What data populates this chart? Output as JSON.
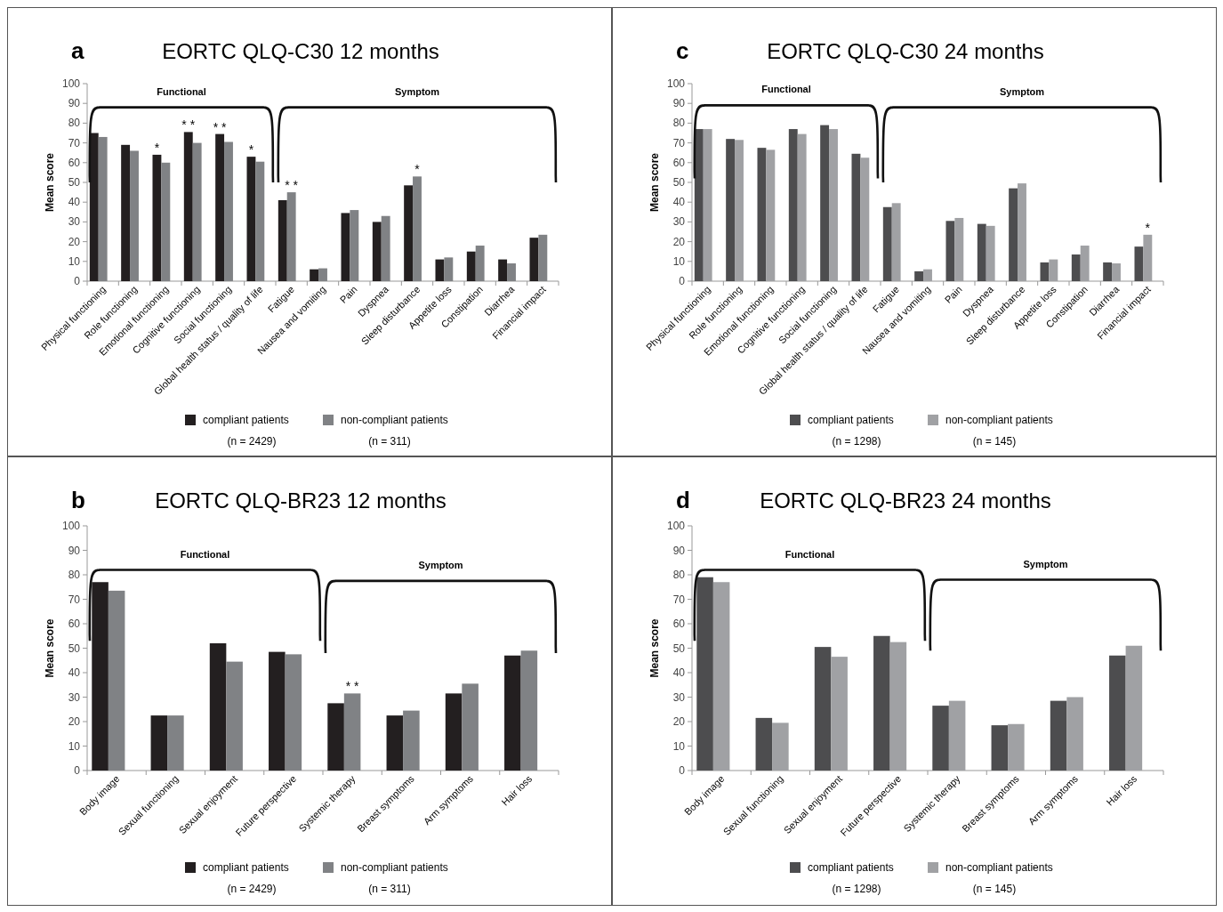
{
  "chart_data": [
    {
      "type": "bar",
      "title": "EORTC QLQ-C30 12 months",
      "ylabel": "Mean score",
      "categories": [
        "Physical functioning",
        "Role functioning",
        "Emotional functioning",
        "Cognitive functioning",
        "Social functioning",
        "Global health status / quality of life",
        "Fatigue",
        "Nausea and vomiting",
        "Pain",
        "Dyspnea",
        "Sleep disturbance",
        "Appetite loss",
        "Constipation",
        "Diarrhea",
        "Financial impact"
      ],
      "series": [
        {
          "name": "compliant patients",
          "color": "#231f20",
          "values": [
            75,
            69,
            64,
            75.5,
            74.5,
            63,
            41,
            6,
            34.5,
            30,
            48.5,
            11,
            15,
            11,
            22
          ]
        },
        {
          "name": "non-compliant patients",
          "color": "#808285",
          "values": [
            73,
            66,
            60,
            70,
            70.5,
            60.5,
            45,
            6.5,
            36,
            33,
            53,
            12,
            18,
            9,
            23.5
          ]
        }
      ],
      "ylim": [
        0,
        100
      ],
      "yticks": [
        0,
        10,
        20,
        30,
        40,
        50,
        60,
        70,
        80,
        90,
        100
      ],
      "legend": "bottom",
      "annotations": [
        "a",
        "Functional",
        "Symptom",
        "(n = 2429)",
        "(n = 311)",
        "*",
        "* *",
        "* *",
        "*",
        {
          "text": "* *",
          "x": "Fatigue",
          "y": 45
        },
        {
          "text": "*",
          "x": "Sleep disturbance",
          "y": 53
        }
      ]
    },
    {
      "type": "bar",
      "title": "EORTC QLQ-BR23 12 months",
      "ylabel": "Mean score",
      "categories": [
        "Body image",
        "Sexual functioning",
        "Sexual enjoyment",
        "Future perspective",
        "Systemic therapy",
        "Breast symptoms",
        "Arm symptoms",
        "Hair loss"
      ],
      "series": [
        {
          "name": "compliant patients",
          "color": "#231f20",
          "values": [
            77,
            22.5,
            52,
            48.5,
            27.5,
            22.5,
            31.5,
            47
          ]
        },
        {
          "name": "non-compliant patients",
          "color": "#808285",
          "values": [
            73.5,
            22.5,
            44.5,
            47.5,
            31.5,
            24.5,
            35.5,
            49
          ]
        }
      ],
      "ylim": [
        0,
        100
      ],
      "yticks": [
        0,
        10,
        20,
        30,
        40,
        50,
        60,
        70,
        80,
        90,
        100
      ],
      "legend": "bottom",
      "annotations": [
        "b",
        "Functional",
        "Symptom",
        "(n = 2429)",
        "(n = 311)",
        {
          "text": "* *",
          "x": "Systemic therapy",
          "y": 31.5
        }
      ]
    },
    {
      "type": "bar",
      "title": "EORTC QLQ-C30 24 months",
      "ylabel": "Mean score",
      "categories": [
        "Physical functioning",
        "Role functioning",
        "Emotional functioning",
        "Cognitive functioning",
        "Social functioning",
        "Global health status / quality of life",
        "Fatigue",
        "Nausea and vomiting",
        "Pain",
        "Dyspnea",
        "Sleep disturbance",
        "Appetite loss",
        "Constipation",
        "Diarrhea",
        "Financial impact"
      ],
      "series": [
        {
          "name": "compliant patients",
          "color": "#4d4d4f",
          "values": [
            77,
            72,
            67.5,
            77,
            79,
            64.5,
            37.5,
            5,
            30.5,
            29,
            47,
            9.5,
            13.5,
            9.5,
            17.5
          ]
        },
        {
          "name": "non-compliant patients",
          "color": "#a0a1a4",
          "values": [
            77,
            71.5,
            66.5,
            74.5,
            77,
            62.5,
            39.5,
            6,
            32,
            28,
            49.5,
            11,
            18,
            9,
            23.5
          ]
        }
      ],
      "ylim": [
        0,
        100
      ],
      "yticks": [
        0,
        10,
        20,
        30,
        40,
        50,
        60,
        70,
        80,
        90,
        100
      ],
      "legend": "bottom",
      "annotations": [
        "c",
        "Functional",
        "Symptom",
        "(n = 1298)",
        "(n = 145)",
        {
          "text": "*",
          "x": "Financial impact",
          "y": 23.5
        }
      ]
    },
    {
      "type": "bar",
      "title": "EORTC QLQ-BR23 24 months",
      "ylabel": "Mean score",
      "categories": [
        "Body image",
        "Sexual functioning",
        "Sexual enjoyment",
        "Future perspective",
        "Systemic therapy",
        "Breast symptoms",
        "Arm symptoms",
        "Hair loss"
      ],
      "series": [
        {
          "name": "compliant patients",
          "color": "#4d4d4f",
          "values": [
            79,
            21.5,
            50.5,
            55,
            26.5,
            18.5,
            28.5,
            47
          ]
        },
        {
          "name": "non-compliant patients",
          "color": "#a0a1a4",
          "values": [
            77,
            19.5,
            46.5,
            52.5,
            28.5,
            19,
            30,
            51
          ]
        }
      ],
      "ylim": [
        0,
        100
      ],
      "yticks": [
        0,
        10,
        20,
        30,
        40,
        50,
        60,
        70,
        80,
        90,
        100
      ],
      "legend": "bottom",
      "annotations": [
        "d",
        "Functional",
        "Symptom",
        "(n = 1298)",
        "(n = 145)"
      ]
    }
  ]
}
